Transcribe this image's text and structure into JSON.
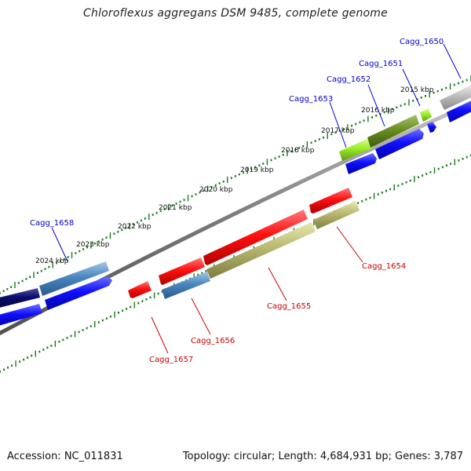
{
  "title": "Chloroflexus aggregans DSM 9485, complete genome",
  "footer": {
    "accession": "Accession: NC_011831",
    "summary": "Topology: circular; Length: 4,684,931 bp; Genes: 3,787"
  },
  "colors": {
    "backbone": "#8a8a8a",
    "tick": "#1a7a1a",
    "forward_label": "#0000cc",
    "reverse_label": "#cc0000"
  },
  "kbp_labels": [
    "2015 kbp",
    "2016 kbp",
    "2017 kbp",
    "2018 kbp",
    "2019 kbp",
    "2020 kbp",
    "2021 kbp",
    "2022 kbp",
    "2023 kbp",
    "2024 kbp"
  ],
  "gene_labels": {
    "Cagg_1650": "Cagg_1650",
    "Cagg_1651": "Cagg_1651",
    "Cagg_1652": "Cagg_1652",
    "Cagg_1653": "Cagg_1653",
    "Cagg_1654": "Cagg_1654",
    "Cagg_1655": "Cagg_1655",
    "Cagg_1656": "Cagg_1656",
    "Cagg_1657": "Cagg_1657",
    "Cagg_1658": "Cagg_1658"
  }
}
